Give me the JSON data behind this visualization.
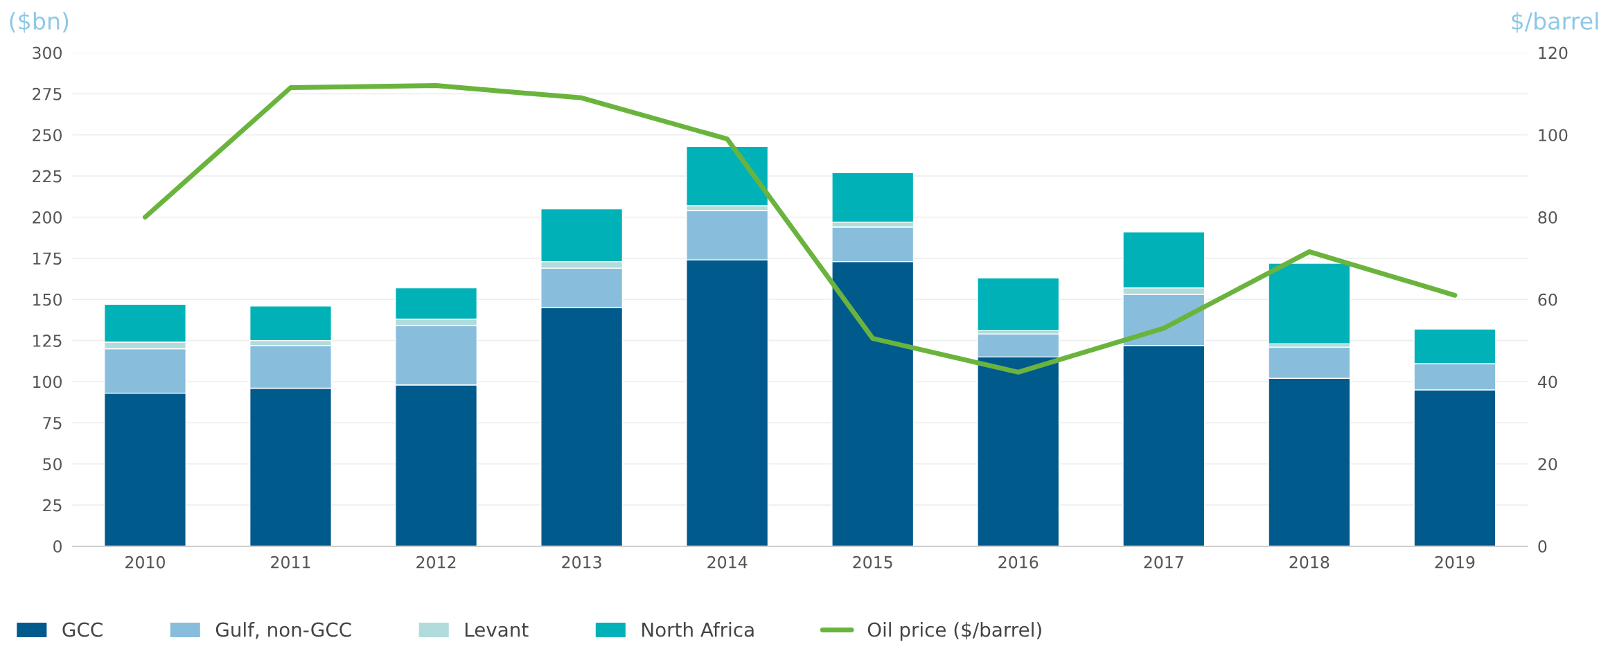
{
  "chart_data": {
    "type": "bar",
    "stacked": true,
    "ylabel": "($bn)",
    "y2label": "$/barrel",
    "categories": [
      "2010",
      "2011",
      "2012",
      "2013",
      "2014",
      "2015",
      "2016",
      "2017",
      "2018",
      "2019"
    ],
    "series": [
      {
        "name": "GCC",
        "color": "#005a8c",
        "values": [
          93,
          96,
          98,
          145,
          174,
          173,
          115,
          122,
          102,
          95
        ]
      },
      {
        "name": "Gulf, non-GCC",
        "color": "#88bedc",
        "values": [
          27,
          26,
          36,
          24,
          30,
          21,
          14,
          31,
          19,
          16
        ]
      },
      {
        "name": "Levant",
        "color": "#b0dcdc",
        "values": [
          4,
          3,
          4,
          4,
          3,
          3,
          2,
          4,
          2,
          0
        ]
      },
      {
        "name": "North Africa",
        "color": "#00b2b8",
        "values": [
          23,
          21,
          19,
          32,
          36,
          30,
          32,
          34,
          49,
          21
        ]
      },
      {
        "name": "Oil price ($/barrel)",
        "type": "line",
        "axis": "y2",
        "color": "#6ab43e",
        "values": [
          80,
          111.5,
          112,
          109,
          99,
          50.5,
          42.3,
          53,
          71.6,
          61
        ]
      }
    ],
    "ylim": [
      0,
      300
    ],
    "yticks": [
      0,
      25,
      50,
      75,
      100,
      125,
      150,
      175,
      200,
      225,
      250,
      275,
      300
    ],
    "y2lim": [
      0,
      120
    ],
    "y2ticks": [
      0,
      20,
      40,
      60,
      80,
      100,
      120
    ],
    "grid": "y",
    "legend": "bottom"
  }
}
